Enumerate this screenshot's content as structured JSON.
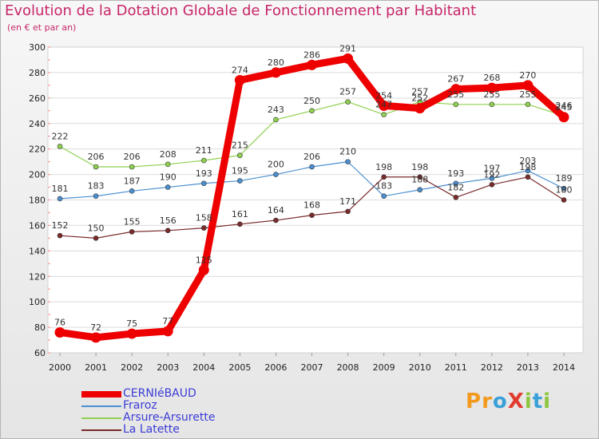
{
  "title": "Evolution de la Dotation Globale de Fonctionnement par Habitant",
  "subtitle": "(en € et par an)",
  "logo": {
    "text": "ProXiti",
    "letters": [
      {
        "ch": "P",
        "color": "#f39a1e"
      },
      {
        "ch": "r",
        "color": "#f39a1e"
      },
      {
        "ch": "o",
        "color": "#3aa0d8"
      },
      {
        "ch": "X",
        "color": "#e23b2e"
      },
      {
        "ch": "i",
        "color": "#8dc63f"
      },
      {
        "ch": "t",
        "color": "#3aa0d8"
      },
      {
        "ch": "i",
        "color": "#8dc63f"
      }
    ]
  },
  "chart_data": {
    "type": "line",
    "title": "Evolution de la Dotation Globale de Fonctionnement par Habitant",
    "subtitle": "(en € et par an)",
    "x": [
      2000,
      2001,
      2002,
      2003,
      2004,
      2005,
      2006,
      2007,
      2008,
      2009,
      2010,
      2011,
      2012,
      2013,
      2014
    ],
    "ylim": [
      60,
      300
    ],
    "yticks": [
      60,
      80,
      100,
      120,
      140,
      160,
      180,
      200,
      220,
      240,
      260,
      280,
      300
    ],
    "grid": true,
    "legend_position": "bottom-left",
    "series": [
      {
        "name": "CERNIéBAUD",
        "color": "#ee0000",
        "width": 9,
        "values": [
          76,
          72,
          75,
          77,
          125,
          274,
          280,
          286,
          291,
          254,
          252,
          267,
          268,
          270,
          245
        ],
        "labels": [
          "76",
          "72",
          "75",
          "77",
          "125",
          "274",
          "280",
          "286",
          "291",
          "254",
          "252",
          "267",
          "268",
          "270",
          "245"
        ]
      },
      {
        "name": "Fraroz",
        "color": "#4b8fd0",
        "width": 1.2,
        "values": [
          181,
          183,
          187,
          190,
          193,
          195,
          200,
          206,
          210,
          183,
          188,
          193,
          197,
          203,
          189
        ],
        "labels": [
          "181",
          "183",
          "187",
          "190",
          "193",
          "195",
          "200",
          "206",
          "210",
          "183",
          "188",
          "193",
          "197",
          "203",
          "189"
        ]
      },
      {
        "name": "Arsure-Arsurette",
        "color": "#8fd14f",
        "width": 1.2,
        "values": [
          222,
          206,
          206,
          208,
          211,
          215,
          243,
          250,
          257,
          247,
          257,
          255,
          255,
          255,
          246
        ],
        "labels": [
          "222",
          "206",
          "206",
          "208",
          "211",
          "215",
          "243",
          "250",
          "257",
          "247",
          "257",
          "255",
          "255",
          "255",
          "246"
        ]
      },
      {
        "name": "La Latette",
        "color": "#7a2a2a",
        "width": 1.2,
        "values": [
          152,
          150,
          155,
          156,
          158,
          161,
          164,
          168,
          171,
          198,
          198,
          182,
          192,
          198,
          180
        ],
        "labels": [
          "152",
          "150",
          "155",
          "156",
          "158",
          "161",
          "164",
          "168",
          "171",
          "198",
          "198",
          "182",
          "192",
          "198",
          "180"
        ]
      }
    ]
  }
}
